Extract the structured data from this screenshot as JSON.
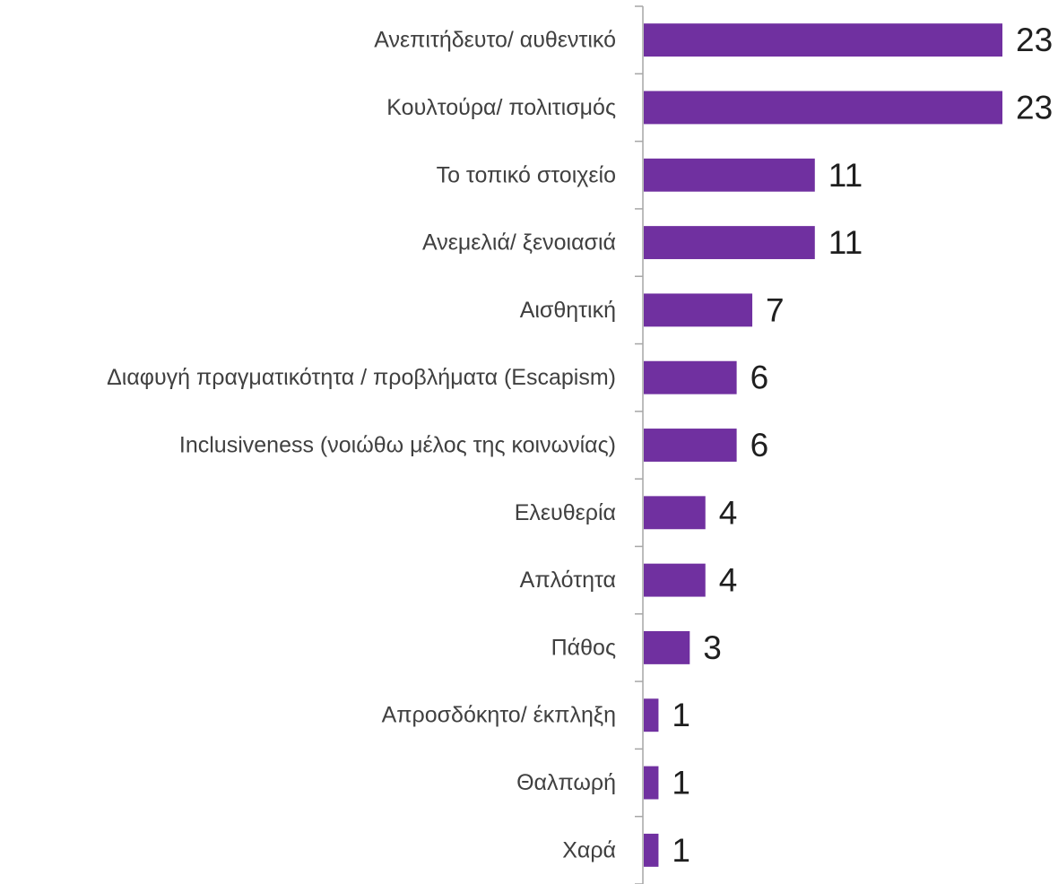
{
  "chart_data": {
    "type": "bar",
    "orientation": "horizontal",
    "title": "",
    "xlabel": "",
    "ylabel": "",
    "categories": [
      "Ανεπιτήδευτο/ αυθεντικό",
      "Κουλτούρα/ πολιτισμός",
      "Το τοπικό στοιχείο",
      "Ανεμελιά/ ξενοιασιά",
      "Αισθητική",
      "Διαφυγή πραγματικότητα / προβλήματα (Escapism)",
      "Inclusiveness (νοιώθω μέλος της κοινωνίας)",
      "Ελευθερία",
      "Απλότητα",
      "Πάθος",
      "Απροσδόκητο/ έκπληξη",
      "Θαλπωρή",
      "Χαρά"
    ],
    "values": [
      23,
      23,
      11,
      11,
      7,
      6,
      6,
      4,
      4,
      3,
      1,
      1,
      1
    ],
    "xlim": [
      0,
      23
    ],
    "grid": false,
    "legend": "none",
    "data_labels": true,
    "colors": {
      "bar": "#7030a0",
      "axis": "#a6a6a6",
      "category_text": "#404040",
      "value_text": "#1f1f1f"
    }
  }
}
